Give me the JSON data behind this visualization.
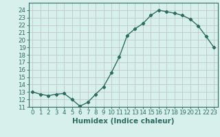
{
  "x": [
    0,
    1,
    2,
    3,
    4,
    5,
    6,
    7,
    8,
    9,
    10,
    11,
    12,
    13,
    14,
    15,
    16,
    17,
    18,
    19,
    20,
    21,
    22,
    23
  ],
  "y": [
    13.0,
    12.7,
    12.5,
    12.7,
    12.8,
    12.0,
    11.1,
    11.6,
    12.7,
    13.7,
    15.6,
    17.7,
    20.6,
    21.5,
    22.2,
    23.3,
    24.0,
    23.8,
    23.6,
    23.3,
    22.8,
    21.9,
    20.5,
    19.0
  ],
  "xlabel": "Humidex (Indice chaleur)",
  "xlim": [
    -0.5,
    23.5
  ],
  "ylim": [
    11,
    25
  ],
  "yticks": [
    11,
    12,
    13,
    14,
    15,
    16,
    17,
    18,
    19,
    20,
    21,
    22,
    23,
    24
  ],
  "xticks": [
    0,
    1,
    2,
    3,
    4,
    5,
    6,
    7,
    8,
    9,
    10,
    11,
    12,
    13,
    14,
    15,
    16,
    17,
    18,
    19,
    20,
    21,
    22,
    23
  ],
  "line_color": "#2d6b5e",
  "marker": "D",
  "marker_size": 2.2,
  "bg_color": "#d8f0ec",
  "grid_color": "#c0c8c4",
  "xlabel_fontsize": 7.5,
  "tick_fontsize": 6.2,
  "line_width": 1.0
}
